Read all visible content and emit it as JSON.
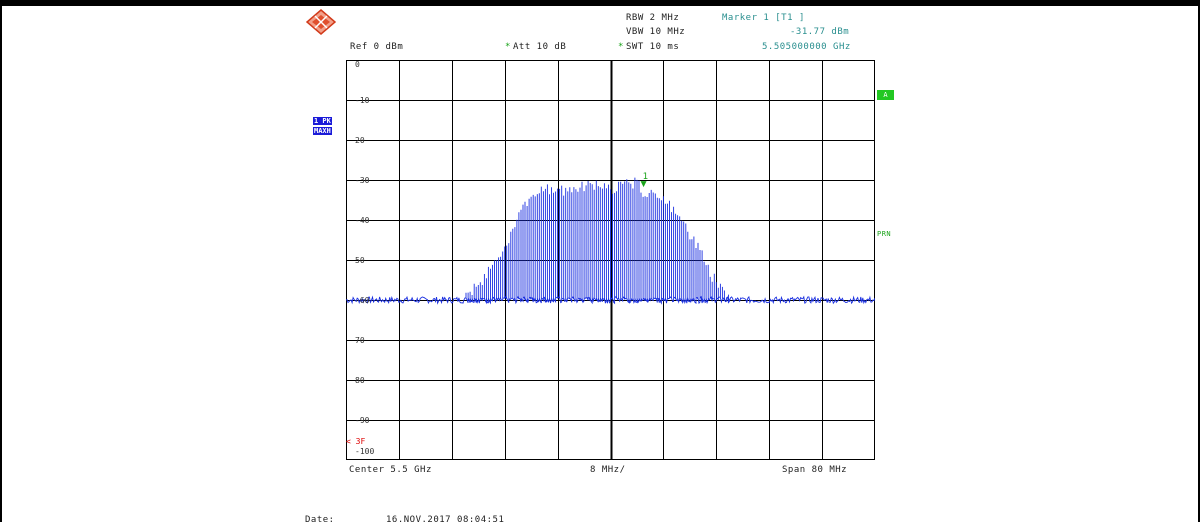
{
  "instrument": {
    "rbw": "RBW 2 MHz",
    "vbw": "VBW 10 MHz",
    "swt": "SWT 10 ms",
    "ref": "Ref  0 dBm",
    "att": "Att  10 dB",
    "att_star": "*",
    "swt_star": "*"
  },
  "marker": {
    "title": "Marker 1 [T1 ]",
    "level": "-31.77 dBm",
    "freq": "5.505000000 GHz",
    "label": "1"
  },
  "trace": {
    "mode_line1": "1 PK",
    "mode_line2": "MAXH",
    "a_badge": "A",
    "side_label": "PRN",
    "ref_marker": "< 3F"
  },
  "axes": {
    "y_labels": [
      "0",
      "-10",
      "20",
      "-30",
      "-40",
      "50",
      "-60",
      "70",
      "80",
      "-90",
      "-100"
    ],
    "center": "Center 5.5 GHz",
    "div": "8 MHz/",
    "span": "Span 80 MHz"
  },
  "footer": {
    "date_label": "Date:",
    "date_value": "16.NOV.2017  08:04:51"
  },
  "chart_data": {
    "type": "line",
    "xlabel": "",
    "ylabel": "",
    "x_range_mhz": [
      5460,
      5540
    ],
    "ylim": [
      -100,
      0
    ],
    "y_unit": "dBm",
    "noise_floor_dbm": -60,
    "marker_x_mhz": 5505,
    "marker_y_dbm": -31.77,
    "grid": true,
    "series": [
      {
        "x": [
          5460,
          5465,
          5470,
          5472,
          5474,
          5476,
          5478,
          5480,
          5482,
          5484,
          5486,
          5488,
          5490,
          5492,
          5494,
          5496,
          5498,
          5500,
          5502,
          5504,
          5505,
          5506,
          5508,
          5510,
          5512,
          5514,
          5515,
          5516,
          5518,
          5520,
          5525,
          5530,
          5535,
          5540
        ],
        "values": [
          -60,
          -60,
          -60,
          -60,
          -60,
          -59,
          -58,
          -55,
          -50,
          -45,
          -38,
          -33,
          -31,
          -31,
          -31,
          -30,
          -30,
          -31,
          -30,
          -29,
          -31.77,
          -32,
          -34,
          -36,
          -42,
          -48,
          -52,
          -54,
          -58,
          -60,
          -60,
          -60,
          -60,
          -60
        ]
      }
    ]
  }
}
